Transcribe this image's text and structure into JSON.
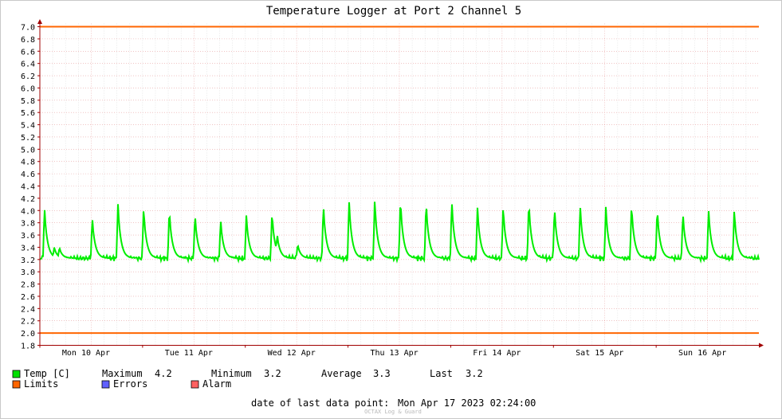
{
  "chart_data": {
    "type": "line",
    "title": "Temperature Logger at Port 2 Channel 5",
    "xlabel": "",
    "ylabel": "",
    "ylim": [
      1.8,
      7.0
    ],
    "yticks": [
      1.8,
      2.0,
      2.2,
      2.4,
      2.6,
      2.8,
      3.0,
      3.2,
      3.4,
      3.6,
      3.8,
      4.0,
      4.2,
      4.4,
      4.6,
      4.8,
      5.0,
      5.2,
      5.4,
      5.6,
      5.8,
      6.0,
      6.2,
      6.4,
      6.6,
      6.8,
      7.0
    ],
    "ytick_labels": [
      "1.8",
      "2.0",
      "2.2",
      "2.4",
      "2.6",
      "2.8",
      "3.0",
      "3.2",
      "3.4",
      "3.6",
      "3.8",
      "4.0",
      "4.2",
      "4.4",
      "4.6",
      "4.8",
      "5.0",
      "5.2",
      "5.4",
      "5.6",
      "5.8",
      "6.0",
      "6.2",
      "6.4",
      "6.6",
      "6.8",
      "7.0"
    ],
    "x_day_labels": [
      "Mon 10 Apr",
      "Tue 11 Apr",
      "Wed 12 Apr",
      "Thu 13 Apr",
      "Fri 14 Apr",
      "Sat 15 Apr",
      "Sun 16 Apr"
    ],
    "x_span_days": 7,
    "grid": true,
    "limits": [
      {
        "name": "upper",
        "value": 7.0
      },
      {
        "name": "lower",
        "value": 2.0
      }
    ],
    "series": [
      {
        "name": "Temp [C]",
        "baseline": 3.22,
        "peaks": [
          {
            "day": 0.045,
            "value": 4.05
          },
          {
            "day": 0.14,
            "value": 3.4
          },
          {
            "day": 0.19,
            "value": 3.4
          },
          {
            "day": 0.51,
            "value": 3.89
          },
          {
            "day": 0.76,
            "value": 4.12
          },
          {
            "day": 1.01,
            "value": 4.05
          },
          {
            "day": 1.26,
            "value": 4.02
          },
          {
            "day": 1.51,
            "value": 3.95
          },
          {
            "day": 1.76,
            "value": 3.85
          },
          {
            "day": 2.01,
            "value": 3.92
          },
          {
            "day": 2.26,
            "value": 3.97
          },
          {
            "day": 2.31,
            "value": 3.62
          },
          {
            "day": 2.51,
            "value": 3.45
          },
          {
            "day": 2.76,
            "value": 4.1
          },
          {
            "day": 3.01,
            "value": 4.17
          },
          {
            "day": 3.26,
            "value": 4.18
          },
          {
            "day": 3.51,
            "value": 4.2
          },
          {
            "day": 3.76,
            "value": 4.15
          },
          {
            "day": 4.01,
            "value": 4.17
          },
          {
            "day": 4.26,
            "value": 4.06
          },
          {
            "day": 4.51,
            "value": 4.07
          },
          {
            "day": 4.76,
            "value": 4.15
          },
          {
            "day": 5.01,
            "value": 4.06
          },
          {
            "day": 5.26,
            "value": 4.09
          },
          {
            "day": 5.51,
            "value": 4.06
          },
          {
            "day": 5.76,
            "value": 4.1
          },
          {
            "day": 6.01,
            "value": 4.04
          },
          {
            "day": 6.26,
            "value": 3.97
          },
          {
            "day": 6.51,
            "value": 4.02
          },
          {
            "day": 6.76,
            "value": 4.01
          }
        ]
      }
    ],
    "stats": {
      "maximum_label": "Maximum",
      "maximum": "4.2",
      "minimum_label": "Minimum",
      "minimum": "3.2",
      "average_label": "Average",
      "average": "3.3",
      "last_label": "Last",
      "last": "3.2"
    },
    "legend": [
      {
        "label": "Temp [C]",
        "color": "#00e000"
      },
      {
        "label": "Limits",
        "color": "#ff6600"
      },
      {
        "label": "Errors",
        "color": "#6060ff"
      },
      {
        "label": "Alarm",
        "color": "#ff6060"
      }
    ],
    "footer": {
      "last_point_label": "date of last data point:",
      "last_point_value": "Mon Apr 17 2023 02:24:00",
      "watermark": "OCTAX Log & Guard"
    },
    "colors": {
      "series": "#00ee00",
      "limits": "#ff6600",
      "major_grid": "#e8a0a0",
      "minor_grid": "#d8d8d8",
      "axis": "#a00000",
      "text": "#000000"
    }
  }
}
